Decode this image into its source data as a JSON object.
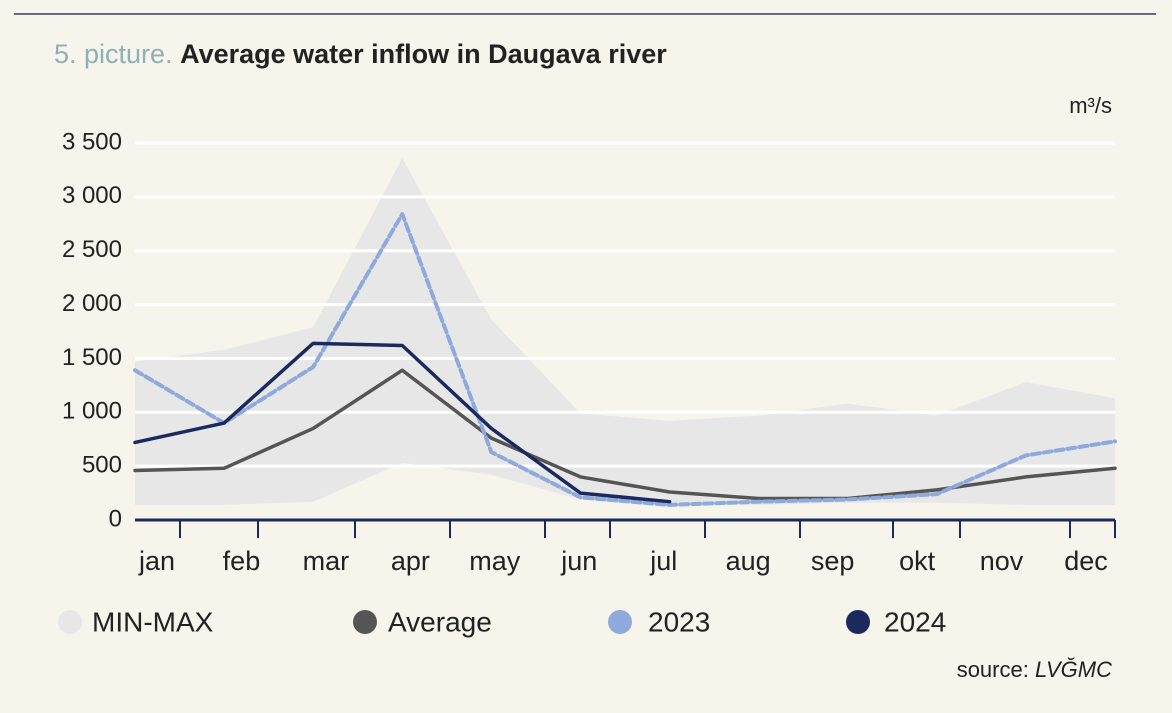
{
  "chart_data": {
    "type": "line",
    "title_prefix": "5. picture.",
    "title": "Average water inflow in Daugava river",
    "unit": "m³/s",
    "source_label": "source:",
    "source_name": "LVĞMC",
    "categories": [
      "jan",
      "feb",
      "mar",
      "apr",
      "may",
      "jun",
      "jul",
      "aug",
      "sep",
      "okt",
      "nov",
      "dec"
    ],
    "ylim": [
      0,
      3500
    ],
    "yticks": [
      0,
      500,
      {
        "value": 1000,
        "label": "1 000"
      },
      {
        "value": 1500,
        "label": "1 500"
      },
      {
        "value": 2000,
        "label": "2 000"
      },
      {
        "value": 2500,
        "label": "2 500"
      },
      {
        "value": 3000,
        "label": "3 000"
      },
      {
        "value": 3500,
        "label": "3 500"
      }
    ],
    "grid": true,
    "band": {
      "name": "MIN-MAX",
      "color": "#e8e7e8",
      "high": [
        1470,
        1580,
        1790,
        3360,
        1860,
        990,
        920,
        970,
        1080,
        970,
        1280,
        1130
      ],
      "low": [
        140,
        140,
        170,
        530,
        420,
        190,
        140,
        140,
        160,
        160,
        140,
        140
      ]
    },
    "series": [
      {
        "name": "Average",
        "color": "#555555",
        "values": [
          460,
          480,
          850,
          1390,
          760,
          400,
          260,
          200,
          200,
          280,
          400,
          480
        ]
      },
      {
        "name": "2023",
        "color": "#8eaadc",
        "dashed": true,
        "values": [
          1390,
          900,
          1420,
          2840,
          630,
          210,
          140,
          170,
          190,
          240,
          600,
          730
        ]
      },
      {
        "name": "2024",
        "color": "#1b2a5e",
        "values": [
          720,
          900,
          1640,
          1620,
          850,
          250,
          170,
          null,
          null,
          null,
          null,
          null
        ]
      }
    ]
  }
}
